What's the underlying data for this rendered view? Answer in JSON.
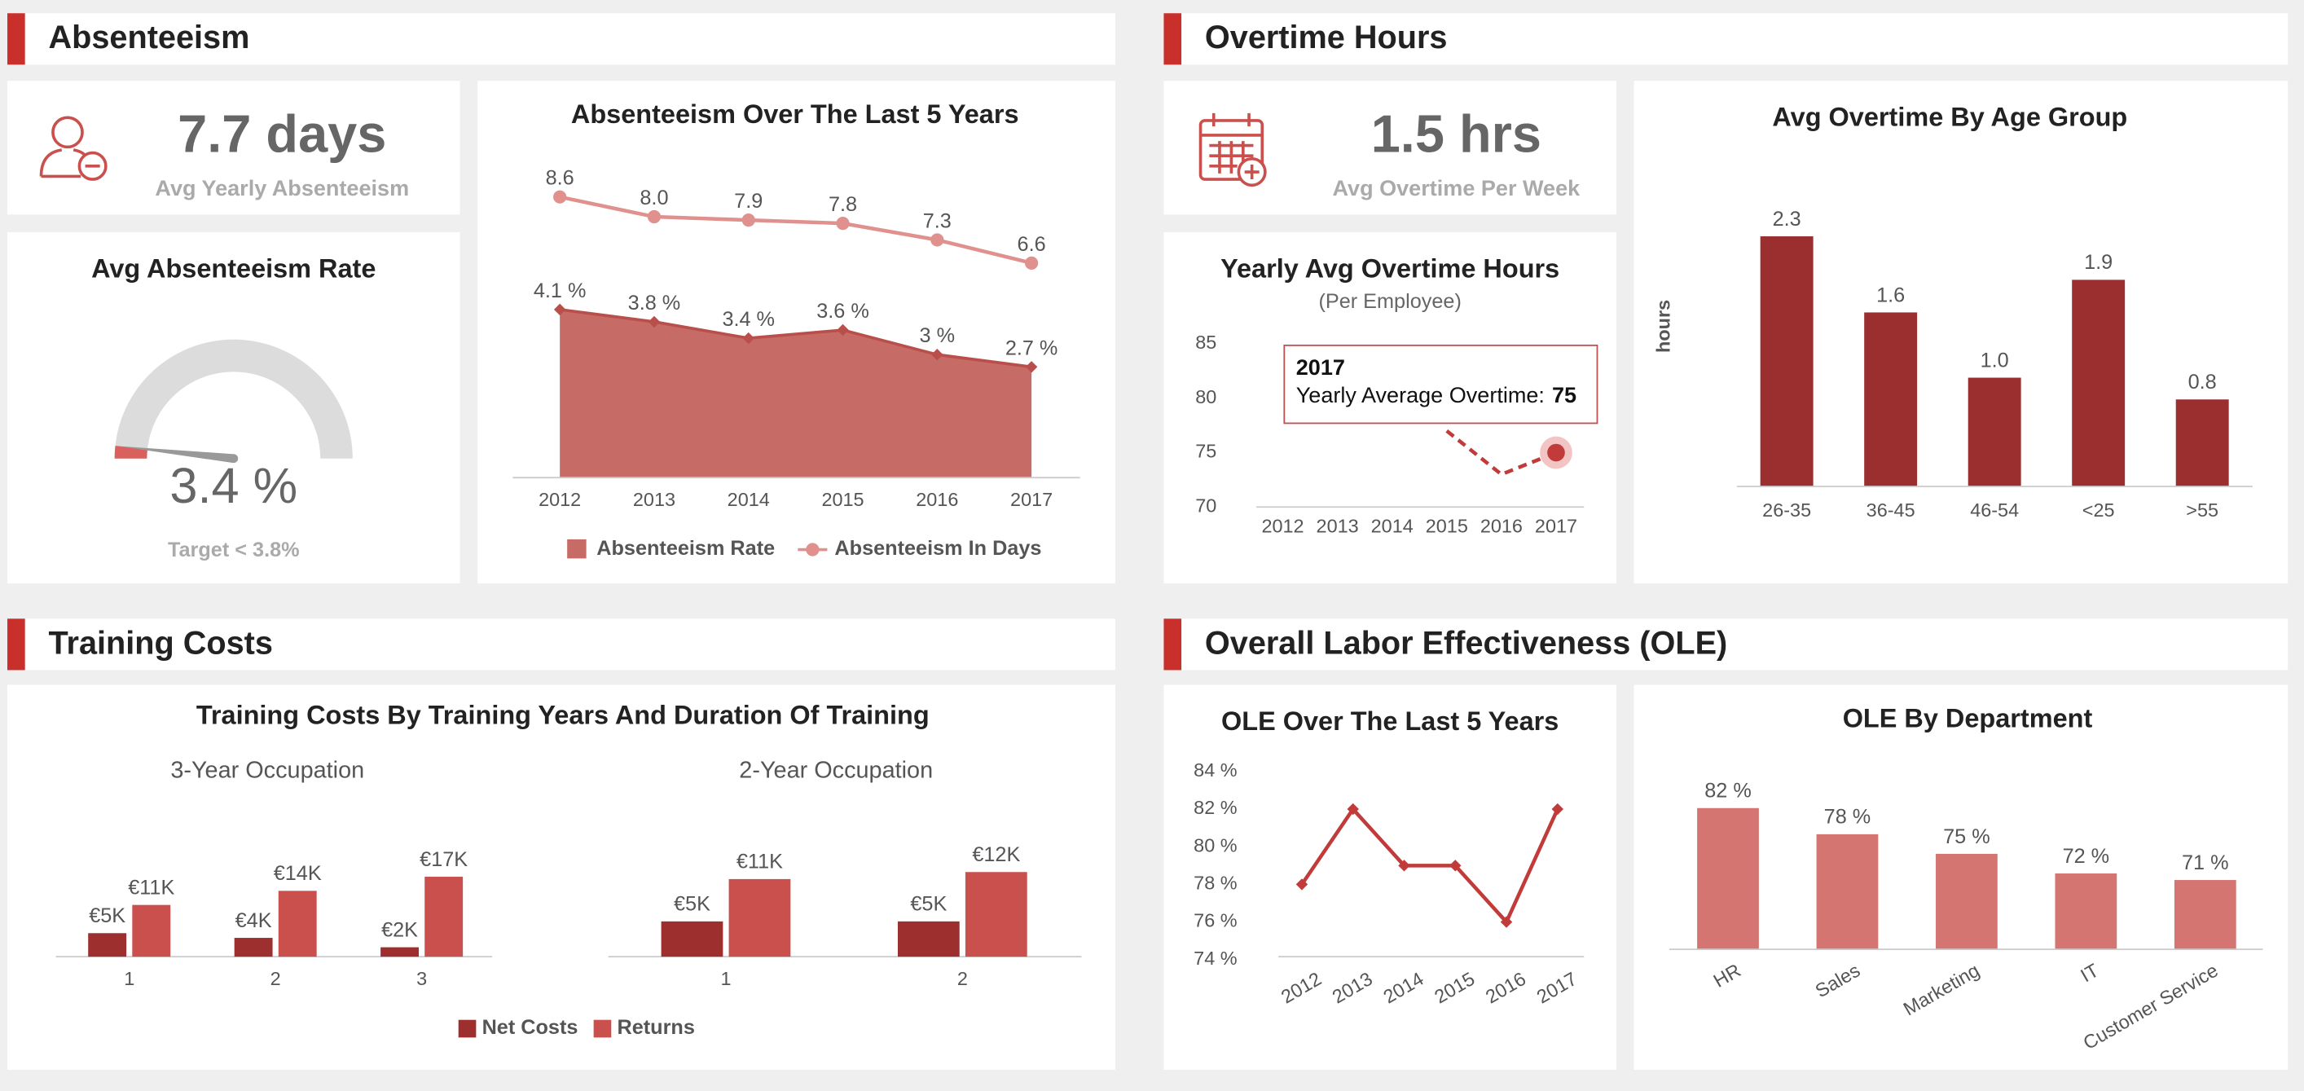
{
  "sections": [
    "Absenteeism",
    "Overtime Hours",
    "Training Costs",
    "Overall Labor Effectiveness (OLE)"
  ],
  "kpis": [
    {
      "value": "7.7 days",
      "label": "Avg Yearly Absenteeism"
    },
    {
      "value": "1.5 hrs",
      "label": "Avg Overtime Per Week"
    }
  ],
  "chart_data": [
    {
      "type": "gauge",
      "title": "Avg Absenteeism Rate",
      "value": 3.4,
      "value_label": "3.4 %",
      "ylim": [
        0,
        100
      ],
      "note": "Target < 3.8%",
      "color": "#d9605c"
    },
    {
      "type": "area_line",
      "title": "Absenteeism Over The Last 5 Years",
      "categories": [
        "2012",
        "2013",
        "2014",
        "2015",
        "2016",
        "2017"
      ],
      "series": [
        {
          "name": "Absenteeism Rate",
          "color": "#c76b67",
          "values": [
            4.1,
            3.8,
            3.4,
            3.6,
            3,
            2.7
          ],
          "value_labels": [
            "4.1 %",
            "3.8 %",
            "3.4 %",
            "3.6 %",
            "3 %",
            "2.7 %"
          ]
        },
        {
          "name": "Absenteeism In Days",
          "color": "#e0918e",
          "values": [
            8.6,
            8.0,
            7.9,
            7.8,
            7.3,
            6.6
          ],
          "value_labels": [
            "8.6",
            "8.0",
            "7.9",
            "7.8",
            "7.3",
            "6.6"
          ]
        }
      ]
    },
    {
      "type": "line",
      "title": "Yearly Avg Overtime Hours",
      "subtitle": "(Per Employee)",
      "categories": [
        "2012",
        "2013",
        "2014",
        "2015",
        "2016",
        "2017"
      ],
      "values": [
        null,
        null,
        null,
        77,
        73,
        75
      ],
      "color": "#c23b3b",
      "ylim": [
        70,
        85
      ],
      "yticks": [
        70,
        75,
        80,
        85
      ],
      "tooltip": {
        "label": "Yearly Average Overtime:"
      }
    },
    {
      "type": "bar",
      "title": "Avg Overtime By Age Group",
      "ylabel": "hours",
      "categories": [
        "26-35",
        "36-45",
        "46-54",
        "<25",
        ">55"
      ],
      "values": [
        2.3,
        1.6,
        1.0,
        1.9,
        0.8
      ],
      "value_labels": [
        "2.3",
        "1.6",
        "1.0",
        "1.9",
        "0.8"
      ],
      "color": "#9b2f2f"
    },
    {
      "type": "grouped_bar",
      "title": "Training Costs By Training Years And Duration Of Training",
      "series": [
        {
          "name": "Net Costs",
          "color": "#9e2f2f"
        },
        {
          "name": "Returns",
          "color": "#c9504c"
        }
      ],
      "panels": [
        {
          "subtitle": "3-Year Occupation",
          "categories": [
            "1",
            "2",
            "3"
          ],
          "values": [
            [
              5000,
              4000,
              2000
            ],
            [
              11000,
              14000,
              17000
            ]
          ],
          "value_labels": [
            [
              "€5K",
              "€4K",
              "€2K"
            ],
            [
              "€11K",
              "€14K",
              "€17K"
            ]
          ]
        },
        {
          "subtitle": "2-Year Occupation",
          "categories": [
            "1",
            "2"
          ],
          "values": [
            [
              5000,
              5000
            ],
            [
              11000,
              12000
            ]
          ],
          "value_labels": [
            [
              "€5K",
              "€5K"
            ],
            [
              "€11K",
              "€12K"
            ]
          ]
        }
      ]
    },
    {
      "type": "line",
      "title": "OLE Over The Last 5 Years",
      "categories": [
        "2012",
        "2013",
        "2014",
        "2015",
        "2016",
        "2017"
      ],
      "values": [
        78,
        82,
        79,
        79,
        76,
        82
      ],
      "color": "#c23b3b",
      "ylim": [
        74,
        84
      ],
      "yticks": [
        {
          "value": 74,
          "label": "74 %"
        },
        {
          "value": 76,
          "label": "76 %"
        },
        {
          "value": 78,
          "label": "78 %"
        },
        {
          "value": 80,
          "label": "80 %"
        },
        {
          "value": 82,
          "label": "82 %"
        },
        {
          "value": 84,
          "label": "84 %"
        }
      ]
    },
    {
      "type": "bar",
      "title": "OLE By Department",
      "categories": [
        "HR",
        "Sales",
        "Marketing",
        "IT",
        "Customer Service"
      ],
      "values": [
        82,
        78,
        75,
        72,
        71
      ],
      "value_labels": [
        "82 %",
        "78 %",
        "75 %",
        "72 %",
        "71 %"
      ],
      "color": "#d47571"
    }
  ]
}
